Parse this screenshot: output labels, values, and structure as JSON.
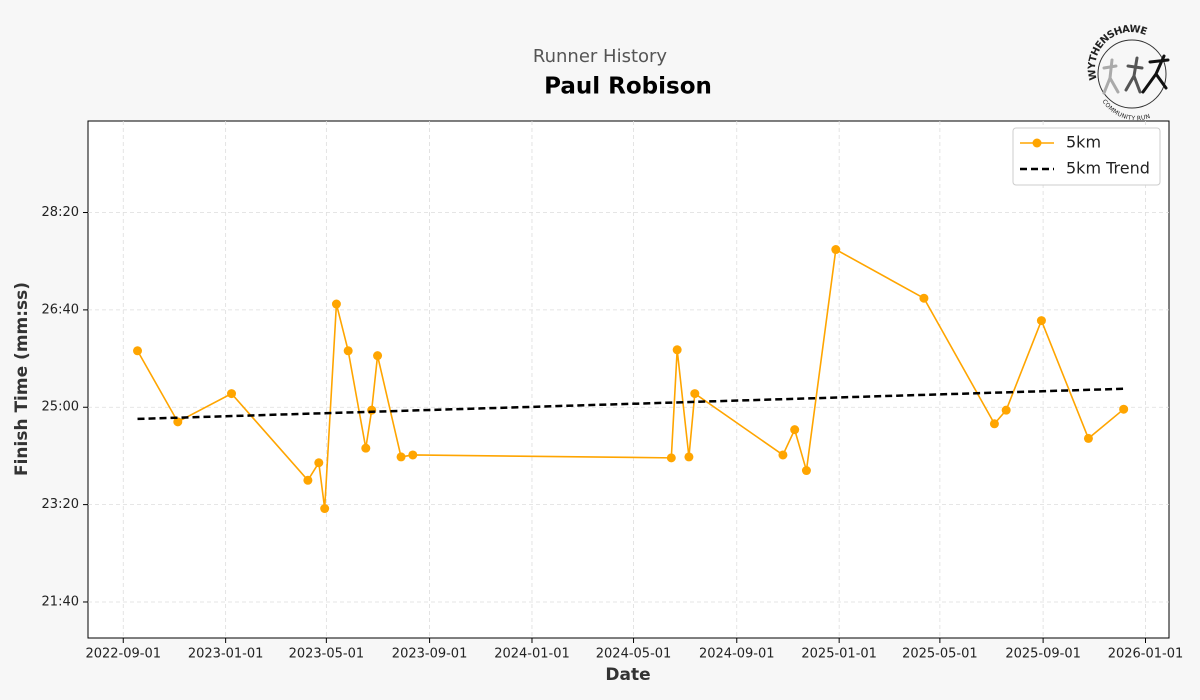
{
  "chart_data": {
    "type": "line",
    "subtitle": "Runner History",
    "title": "Paul Robison",
    "logo_top": "WYTHENSHAWE",
    "logo_bottom": "COMMUNITY RUN",
    "x_label": "Date",
    "y_label": "Finish Time (mm:ss)",
    "xlim": [
      "2022-07-21",
      "2026-01-29"
    ],
    "xticks": [
      "2022-09-01",
      "2023-01-01",
      "2023-05-01",
      "2023-09-01",
      "2024-01-01",
      "2024-05-01",
      "2024-09-01",
      "2025-01-01",
      "2025-05-01",
      "2025-09-01",
      "2026-01-01"
    ],
    "ylim": [
      1263,
      1794
    ],
    "yticks": [
      {
        "value": 1300,
        "label": "21:40"
      },
      {
        "value": 1400,
        "label": "23:20"
      },
      {
        "value": 1500,
        "label": "25:00"
      },
      {
        "value": 1600,
        "label": "26:40"
      },
      {
        "value": 1700,
        "label": "28:20"
      }
    ],
    "grid": true,
    "legend": "upper right",
    "series": [
      {
        "name": "5km",
        "color": "#ffa500",
        "style": "solid-marker",
        "x": [
          "2022-09-18",
          "2022-11-05",
          "2023-01-08",
          "2023-04-09",
          "2023-04-22",
          "2023-04-29",
          "2023-05-13",
          "2023-05-27",
          "2023-06-17",
          "2023-06-24",
          "2023-07-01",
          "2023-07-29",
          "2023-08-12",
          "2024-06-15",
          "2024-06-22",
          "2024-07-06",
          "2024-07-13",
          "2024-10-26",
          "2024-11-09",
          "2024-11-23",
          "2024-12-28",
          "2025-04-12",
          "2025-07-05",
          "2025-07-19",
          "2025-08-30",
          "2025-10-25",
          "2025-12-06"
        ],
        "values": [
          1558,
          1485,
          1514,
          1425,
          1443,
          1396,
          1606,
          1558,
          1458,
          1497,
          1553,
          1449,
          1451,
          1448,
          1559,
          1449,
          1514,
          1451,
          1477,
          1435,
          1662,
          1612,
          1483,
          1497,
          1589,
          1468,
          1498
        ]
      },
      {
        "name": "5km Trend",
        "color": "#000000",
        "style": "dashed",
        "x": [
          "2022-09-18",
          "2025-12-06"
        ],
        "values": [
          1488,
          1519
        ]
      }
    ]
  }
}
